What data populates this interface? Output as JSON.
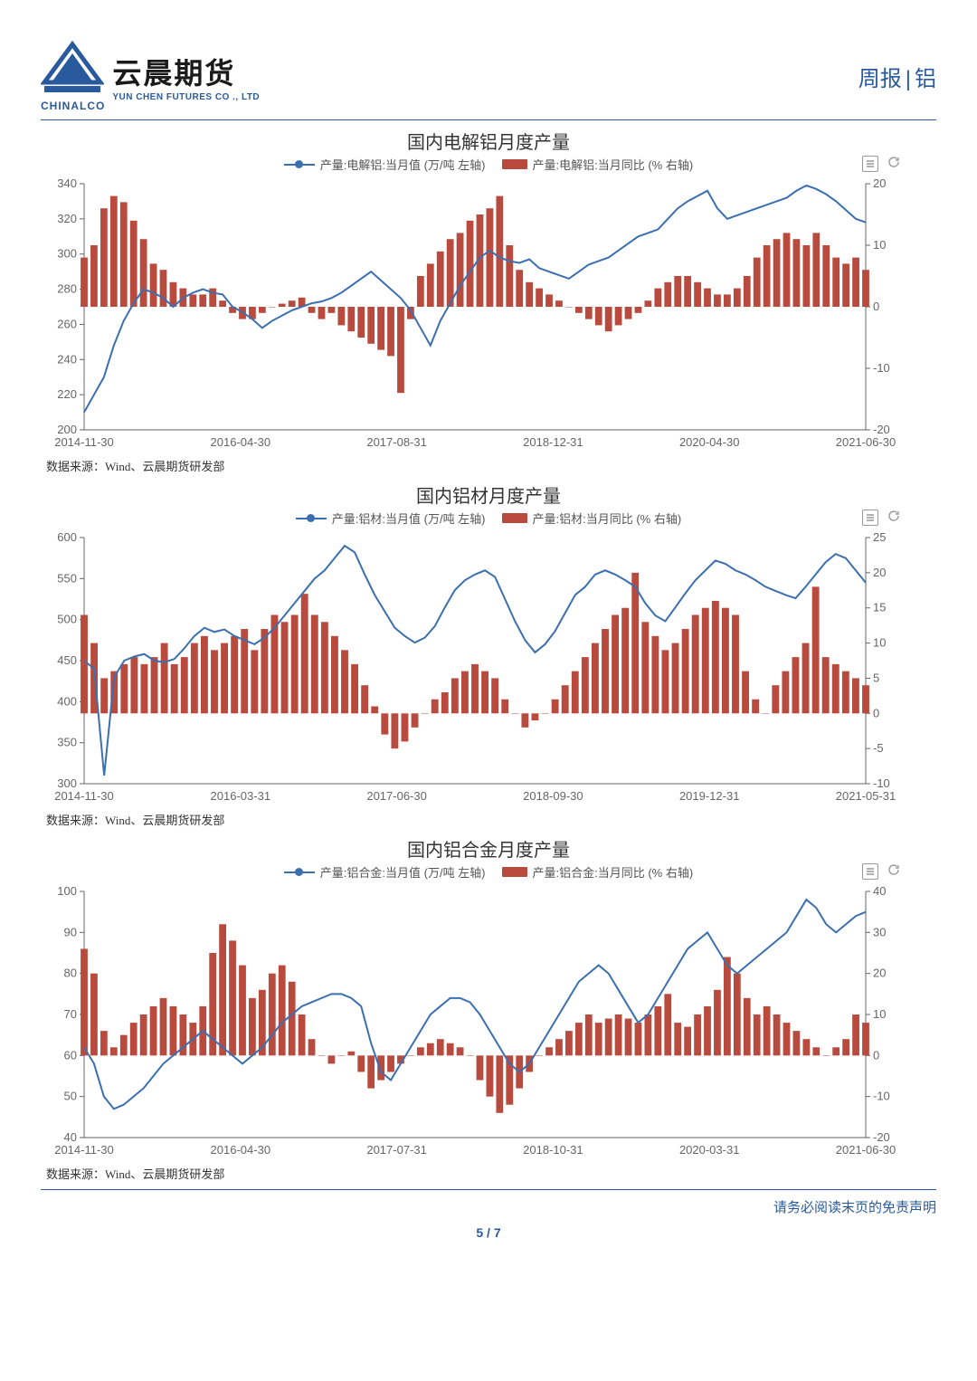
{
  "header": {
    "chinalco": "CHINALCO",
    "logo_cn": "云晨期货",
    "logo_en": "YUN CHEN FUTURES CO ., LTD",
    "report_prefix": "周报",
    "report_subject": "铝"
  },
  "source_label": "数据来源：Wind、云晨期货研发部",
  "disclaimer": "请务必阅读末页的免责声明",
  "page_number": "5 / 7",
  "colors": {
    "line": "#3b6fb0",
    "bar": "#b94a3e",
    "axis": "#666666",
    "tick_text": "#666666",
    "border_rule": "#2a5a9e"
  },
  "charts": [
    {
      "title": "国内电解铝月度产量",
      "legend_line": "产量:电解铝:当月值 (万/吨 左轴)",
      "legend_bar": "产量:电解铝:当月同比 (% 右轴)",
      "left_ylim": [
        200,
        340
      ],
      "left_tick_step": 20,
      "right_ylim": [
        -20,
        20
      ],
      "right_tick_step": 10,
      "x_labels": [
        "2014-11-30",
        "2016-04-30",
        "2017-08-31",
        "2018-12-31",
        "2020-04-30",
        "2021-06-30"
      ],
      "n_points": 80,
      "line": [
        210,
        220,
        230,
        248,
        262,
        272,
        280,
        278,
        275,
        270,
        275,
        278,
        280,
        278,
        277,
        270,
        267,
        263,
        258,
        262,
        265,
        268,
        270,
        272,
        273,
        275,
        278,
        282,
        286,
        290,
        285,
        280,
        275,
        268,
        258,
        248,
        262,
        272,
        282,
        290,
        298,
        302,
        298,
        296,
        295,
        297,
        292,
        290,
        288,
        286,
        290,
        294,
        296,
        298,
        302,
        306,
        310,
        312,
        314,
        320,
        326,
        330,
        333,
        336,
        326,
        320,
        322,
        324,
        326,
        328,
        330,
        332,
        336,
        339,
        337,
        334,
        330,
        325,
        320,
        318
      ],
      "bars": [
        8,
        10,
        16,
        18,
        17,
        14,
        11,
        7,
        6,
        4,
        3,
        2,
        2,
        3,
        1,
        -1,
        -2,
        -2,
        -1,
        0,
        0.5,
        1,
        1.5,
        -1,
        -2,
        -1,
        -3,
        -4,
        -5,
        -6,
        -7,
        -8,
        -14,
        -2,
        5,
        7,
        9,
        11,
        12,
        14,
        15,
        16,
        18,
        10,
        6,
        4,
        3,
        2,
        1,
        0,
        -1,
        -2,
        -3,
        -4,
        -3,
        -2,
        -1,
        1,
        3,
        4,
        5,
        5,
        4,
        3,
        2,
        2,
        3,
        5,
        8,
        10,
        11,
        12,
        11,
        10,
        12,
        10,
        8,
        7,
        8,
        6
      ]
    },
    {
      "title": "国内铝材月度产量",
      "legend_line": "产量:铝材:当月值 (万/吨 左轴)",
      "legend_bar": "产量:铝材:当月同比 (% 右轴)",
      "left_ylim": [
        300,
        600
      ],
      "left_tick_step": 50,
      "right_ylim": [
        -10,
        25
      ],
      "right_tick_step": 5,
      "x_labels": [
        "2014-11-30",
        "2016-03-31",
        "2017-06-30",
        "2018-09-30",
        "2019-12-31",
        "2021-05-31"
      ],
      "n_points": 79,
      "line": [
        450,
        440,
        310,
        430,
        450,
        455,
        458,
        450,
        448,
        452,
        465,
        480,
        490,
        485,
        488,
        480,
        475,
        470,
        478,
        490,
        505,
        520,
        535,
        550,
        560,
        575,
        590,
        582,
        555,
        530,
        510,
        490,
        480,
        472,
        478,
        492,
        515,
        536,
        548,
        555,
        560,
        552,
        525,
        498,
        475,
        460,
        470,
        486,
        508,
        530,
        540,
        555,
        560,
        555,
        548,
        540,
        520,
        505,
        498,
        515,
        532,
        548,
        560,
        572,
        568,
        560,
        555,
        548,
        540,
        535,
        530,
        526,
        540,
        555,
        570,
        580,
        575,
        560,
        545
      ],
      "bars": [
        14,
        10,
        5,
        6,
        7,
        8,
        7,
        8,
        10,
        7,
        8,
        10,
        11,
        9,
        10,
        11,
        12,
        9,
        12,
        14,
        13,
        14,
        17,
        14,
        13,
        11,
        9,
        7,
        4,
        1,
        -3,
        -5,
        -4,
        -2,
        0,
        2,
        3,
        5,
        6,
        7,
        6,
        5,
        2,
        0,
        -2,
        -1,
        0,
        2,
        4,
        6,
        8,
        10,
        12,
        14,
        15,
        20,
        13,
        11,
        9,
        10,
        12,
        14,
        15,
        16,
        15,
        14,
        6,
        2,
        0,
        4,
        6,
        8,
        10,
        18,
        8,
        7,
        6,
        5,
        4
      ]
    },
    {
      "title": "国内铝合金月度产量",
      "legend_line": "产量:铝合金:当月值 (万/吨 左轴)",
      "legend_bar": "产量:铝合金:当月同比 (% 右轴)",
      "left_ylim": [
        40,
        100
      ],
      "left_tick_step": 10,
      "right_ylim": [
        -20,
        40
      ],
      "right_tick_step": 10,
      "x_labels": [
        "2014-11-30",
        "2016-04-30",
        "2017-07-31",
        "2018-10-31",
        "2020-03-31",
        "2021-06-30"
      ],
      "n_points": 80,
      "line": [
        62,
        58,
        50,
        47,
        48,
        50,
        52,
        55,
        58,
        60,
        62,
        64,
        66,
        64,
        62,
        60,
        58,
        60,
        62,
        65,
        68,
        70,
        72,
        73,
        74,
        75,
        75,
        74,
        72,
        63,
        56,
        54,
        58,
        62,
        66,
        70,
        72,
        74,
        74,
        73,
        70,
        66,
        62,
        58,
        56,
        58,
        62,
        66,
        70,
        74,
        78,
        80,
        82,
        80,
        76,
        72,
        68,
        70,
        74,
        78,
        82,
        86,
        88,
        90,
        86,
        82,
        80,
        82,
        84,
        86,
        88,
        90,
        94,
        98,
        96,
        92,
        90,
        92,
        94,
        95
      ],
      "bars": [
        26,
        20,
        6,
        2,
        5,
        8,
        10,
        12,
        14,
        12,
        10,
        8,
        12,
        25,
        32,
        28,
        22,
        14,
        16,
        20,
        22,
        18,
        10,
        4,
        0,
        -2,
        0,
        1,
        -4,
        -8,
        -6,
        -4,
        -2,
        0,
        2,
        3,
        4,
        3,
        2,
        0,
        -6,
        -10,
        -14,
        -12,
        -8,
        -4,
        0,
        2,
        4,
        6,
        8,
        10,
        8,
        9,
        10,
        9,
        8,
        10,
        12,
        15,
        8,
        7,
        10,
        12,
        16,
        24,
        20,
        14,
        10,
        12,
        10,
        8,
        6,
        4,
        2,
        0,
        2,
        4,
        10,
        8
      ]
    }
  ]
}
